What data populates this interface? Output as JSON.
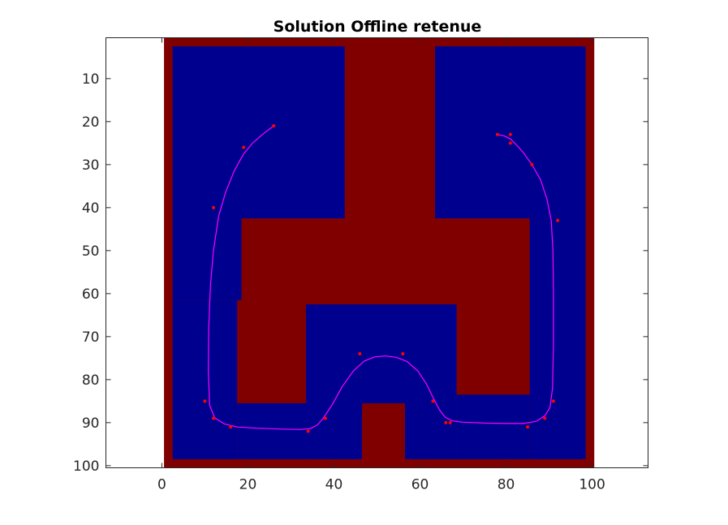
{
  "chart_data": {
    "type": "heatmap",
    "title": "Solution Offline retenue",
    "xlabel": "",
    "ylabel": "",
    "xlim": [
      -13,
      113
    ],
    "ylim": [
      0.5,
      100.5
    ],
    "y_reversed": true,
    "x_ticks": [
      0,
      20,
      40,
      60,
      80,
      100
    ],
    "y_ticks": [
      10,
      20,
      30,
      40,
      50,
      60,
      70,
      80,
      90,
      100
    ],
    "grid": false,
    "legend": "none",
    "colors": {
      "free_space": "#00008f",
      "obstacle": "#800000",
      "path": "#ff00ff",
      "waypoints": "#ff0000",
      "axes": "#262626",
      "background": "#ffffff"
    },
    "map_extent": {
      "x": [
        0.5,
        100.5
      ],
      "y": [
        0.5,
        100.5
      ]
    },
    "free_space_regions": [
      {
        "x": [
          2.5,
          42.5
        ],
        "y": [
          2.5,
          42.5
        ]
      },
      {
        "x": [
          63.5,
          98.5
        ],
        "y": [
          2.5,
          42.5
        ]
      },
      {
        "x": [
          2.5,
          18.5
        ],
        "y": [
          42.5,
          61.5
        ]
      },
      {
        "x": [
          2.5,
          17.5
        ],
        "y": [
          61.5,
          98.5
        ]
      },
      {
        "x": [
          17.5,
          33.5
        ],
        "y": [
          85.5,
          98.5
        ]
      },
      {
        "x": [
          33.5,
          46.5
        ],
        "y": [
          62.5,
          98.5
        ]
      },
      {
        "x": [
          46.5,
          56.5
        ],
        "y": [
          62.5,
          85.5
        ]
      },
      {
        "x": [
          56.5,
          68.5
        ],
        "y": [
          62.5,
          98.5
        ]
      },
      {
        "x": [
          68.5,
          85.5
        ],
        "y": [
          83.5,
          98.5
        ]
      },
      {
        "x": [
          85.5,
          98.5
        ],
        "y": [
          42.5,
          98.5
        ]
      }
    ],
    "waypoints": [
      {
        "x": 26,
        "y": 21
      },
      {
        "x": 19,
        "y": 26
      },
      {
        "x": 12,
        "y": 40
      },
      {
        "x": 10,
        "y": 85
      },
      {
        "x": 12,
        "y": 89
      },
      {
        "x": 16,
        "y": 91
      },
      {
        "x": 34,
        "y": 92
      },
      {
        "x": 38,
        "y": 89
      },
      {
        "x": 46,
        "y": 74
      },
      {
        "x": 56,
        "y": 74
      },
      {
        "x": 63,
        "y": 85
      },
      {
        "x": 66,
        "y": 90
      },
      {
        "x": 67,
        "y": 90
      },
      {
        "x": 85,
        "y": 91
      },
      {
        "x": 89,
        "y": 89
      },
      {
        "x": 91,
        "y": 85
      },
      {
        "x": 92,
        "y": 43
      },
      {
        "x": 86,
        "y": 30
      },
      {
        "x": 81,
        "y": 25
      },
      {
        "x": 81,
        "y": 23
      },
      {
        "x": 78,
        "y": 23
      }
    ],
    "path": [
      [
        26,
        21
      ],
      [
        23.5,
        22.9
      ],
      [
        21.2,
        24.9
      ],
      [
        19,
        27.5
      ],
      [
        16.8,
        31.5
      ],
      [
        14.8,
        36.5
      ],
      [
        13.2,
        42
      ],
      [
        12,
        50
      ],
      [
        11.3,
        58
      ],
      [
        10.9,
        68
      ],
      [
        10.8,
        78
      ],
      [
        11.1,
        86
      ],
      [
        12.3,
        88.9
      ],
      [
        14.5,
        90.3
      ],
      [
        17.5,
        91
      ],
      [
        22,
        91.3
      ],
      [
        28,
        91.5
      ],
      [
        32,
        91.6
      ],
      [
        34.5,
        91.4
      ],
      [
        36.2,
        90.5
      ],
      [
        37.5,
        89
      ],
      [
        39.5,
        86
      ],
      [
        42,
        81.5
      ],
      [
        44.5,
        78
      ],
      [
        47,
        75.7
      ],
      [
        49.5,
        74.7
      ],
      [
        52,
        74.5
      ],
      [
        54.5,
        74.8
      ],
      [
        57,
        75.8
      ],
      [
        59.5,
        78
      ],
      [
        61.5,
        81
      ],
      [
        63.2,
        84.5
      ],
      [
        64.5,
        87
      ],
      [
        65.8,
        88.7
      ],
      [
        67.5,
        89.6
      ],
      [
        70,
        89.9
      ],
      [
        75,
        90.1
      ],
      [
        80,
        90.2
      ],
      [
        84,
        90.2
      ],
      [
        87,
        89.7
      ],
      [
        89,
        88.4
      ],
      [
        90.2,
        86.5
      ],
      [
        90.8,
        82
      ],
      [
        91,
        72
      ],
      [
        91,
        60
      ],
      [
        90.9,
        50
      ],
      [
        90.5,
        43
      ],
      [
        89.5,
        38
      ],
      [
        88,
        33.5
      ],
      [
        86,
        30
      ],
      [
        84,
        27.2
      ],
      [
        82.5,
        25.5
      ],
      [
        81,
        24
      ],
      [
        79.5,
        23.3
      ],
      [
        78,
        23
      ]
    ]
  }
}
